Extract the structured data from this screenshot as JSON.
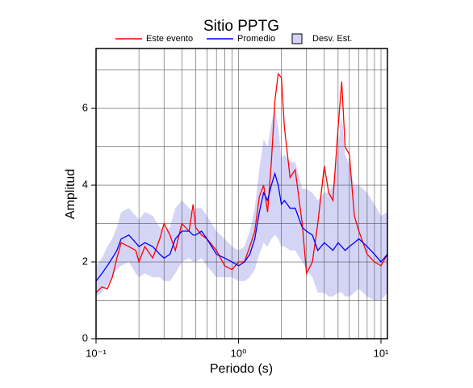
{
  "chart_data": {
    "type": "line",
    "title": "Sitio PPTG",
    "x_label": "Periodo (s)",
    "y_label": "Amplitud",
    "xlog": true,
    "grid": true,
    "xlim": [
      0.1,
      11.1
    ],
    "ylim": [
      0,
      7.56
    ],
    "xticks": [
      {
        "value": 0.1,
        "label": "10⁻¹"
      },
      {
        "value": 1,
        "label": "10⁰"
      },
      {
        "value": 10,
        "label": "10¹"
      }
    ],
    "xminor": [
      0.2,
      0.3,
      0.4,
      0.5,
      0.6,
      0.7,
      0.8,
      0.9,
      2,
      3,
      4,
      5,
      6,
      7,
      8,
      9
    ],
    "yticks": [
      0,
      2,
      4,
      6
    ],
    "yminor": [
      1,
      3,
      5,
      7
    ],
    "x": [
      0.1,
      0.11,
      0.12,
      0.13,
      0.14,
      0.15,
      0.17,
      0.19,
      0.2,
      0.22,
      0.25,
      0.28,
      0.3,
      0.33,
      0.36,
      0.4,
      0.45,
      0.48,
      0.5,
      0.55,
      0.6,
      0.7,
      0.8,
      0.9,
      1.0,
      1.1,
      1.2,
      1.3,
      1.4,
      1.5,
      1.6,
      1.7,
      1.8,
      1.9,
      2.0,
      2.1,
      2.3,
      2.5,
      2.8,
      3.0,
      3.3,
      3.6,
      4.0,
      4.3,
      4.6,
      5.0,
      5.3,
      5.6,
      6.0,
      6.5,
      7.0,
      8.0,
      9.0,
      10.0,
      11.1
    ],
    "band": {
      "name": "Desv. Est.",
      "color": "#d4d4f7",
      "lower": [
        1.1,
        1.2,
        1.4,
        1.6,
        1.8,
        1.9,
        2.0,
        1.7,
        1.6,
        1.7,
        1.6,
        1.6,
        1.5,
        1.5,
        1.7,
        2.0,
        2.1,
        2.0,
        2.0,
        2.1,
        1.9,
        1.6,
        1.6,
        1.6,
        1.5,
        1.5,
        1.6,
        1.8,
        2.2,
        2.5,
        2.4,
        2.6,
        2.7,
        2.6,
        2.4,
        2.4,
        2.3,
        2.3,
        2.0,
        1.8,
        1.6,
        1.2,
        1.2,
        1.1,
        1.1,
        1.2,
        1.2,
        1.1,
        1.1,
        1.2,
        1.3,
        1.1,
        1.0,
        1.0,
        1.2
      ],
      "upper": [
        1.9,
        2.1,
        2.4,
        2.6,
        2.9,
        3.3,
        3.4,
        3.2,
        3.1,
        3.3,
        3.2,
        2.9,
        2.8,
        2.9,
        3.4,
        3.6,
        3.4,
        3.3,
        3.4,
        3.4,
        3.2,
        2.8,
        2.6,
        2.4,
        2.3,
        2.4,
        2.8,
        3.4,
        4.4,
        5.2,
        5.0,
        5.6,
        6.0,
        5.5,
        4.7,
        4.8,
        4.6,
        4.6,
        3.9,
        3.9,
        3.8,
        3.6,
        3.8,
        3.8,
        4.0,
        5.0,
        5.8,
        4.8,
        4.5,
        4.0,
        4.0,
        3.8,
        3.5,
        3.2,
        3.3
      ]
    },
    "series": [
      {
        "name": "Este evento",
        "color": "#ff0000",
        "values": [
          1.2,
          1.35,
          1.3,
          1.6,
          2.1,
          2.5,
          2.4,
          2.3,
          2.0,
          2.4,
          2.1,
          2.6,
          3.0,
          2.7,
          2.3,
          3.0,
          2.8,
          3.5,
          2.9,
          2.7,
          2.6,
          2.3,
          1.9,
          1.8,
          2.0,
          2.0,
          2.4,
          2.8,
          3.7,
          4.0,
          3.3,
          4.6,
          6.2,
          6.9,
          6.8,
          5.5,
          4.2,
          4.4,
          3.0,
          1.7,
          2.0,
          3.0,
          4.5,
          3.8,
          3.6,
          5.5,
          6.7,
          5.0,
          4.8,
          3.2,
          2.8,
          2.2,
          2.0,
          1.9,
          2.2
        ]
      },
      {
        "name": "Promedio",
        "color": "#0000ff",
        "values": [
          1.5,
          1.7,
          1.9,
          2.1,
          2.3,
          2.6,
          2.7,
          2.5,
          2.4,
          2.5,
          2.4,
          2.2,
          2.1,
          2.2,
          2.6,
          2.8,
          2.8,
          2.7,
          2.7,
          2.8,
          2.6,
          2.2,
          2.1,
          2.0,
          1.9,
          2.0,
          2.2,
          2.6,
          3.3,
          3.8,
          3.6,
          4.0,
          4.3,
          4.0,
          3.5,
          3.6,
          3.4,
          3.4,
          2.9,
          2.8,
          2.7,
          2.3,
          2.5,
          2.4,
          2.3,
          2.5,
          2.4,
          2.3,
          2.4,
          2.5,
          2.6,
          2.4,
          2.2,
          2.0,
          2.2
        ]
      }
    ]
  }
}
